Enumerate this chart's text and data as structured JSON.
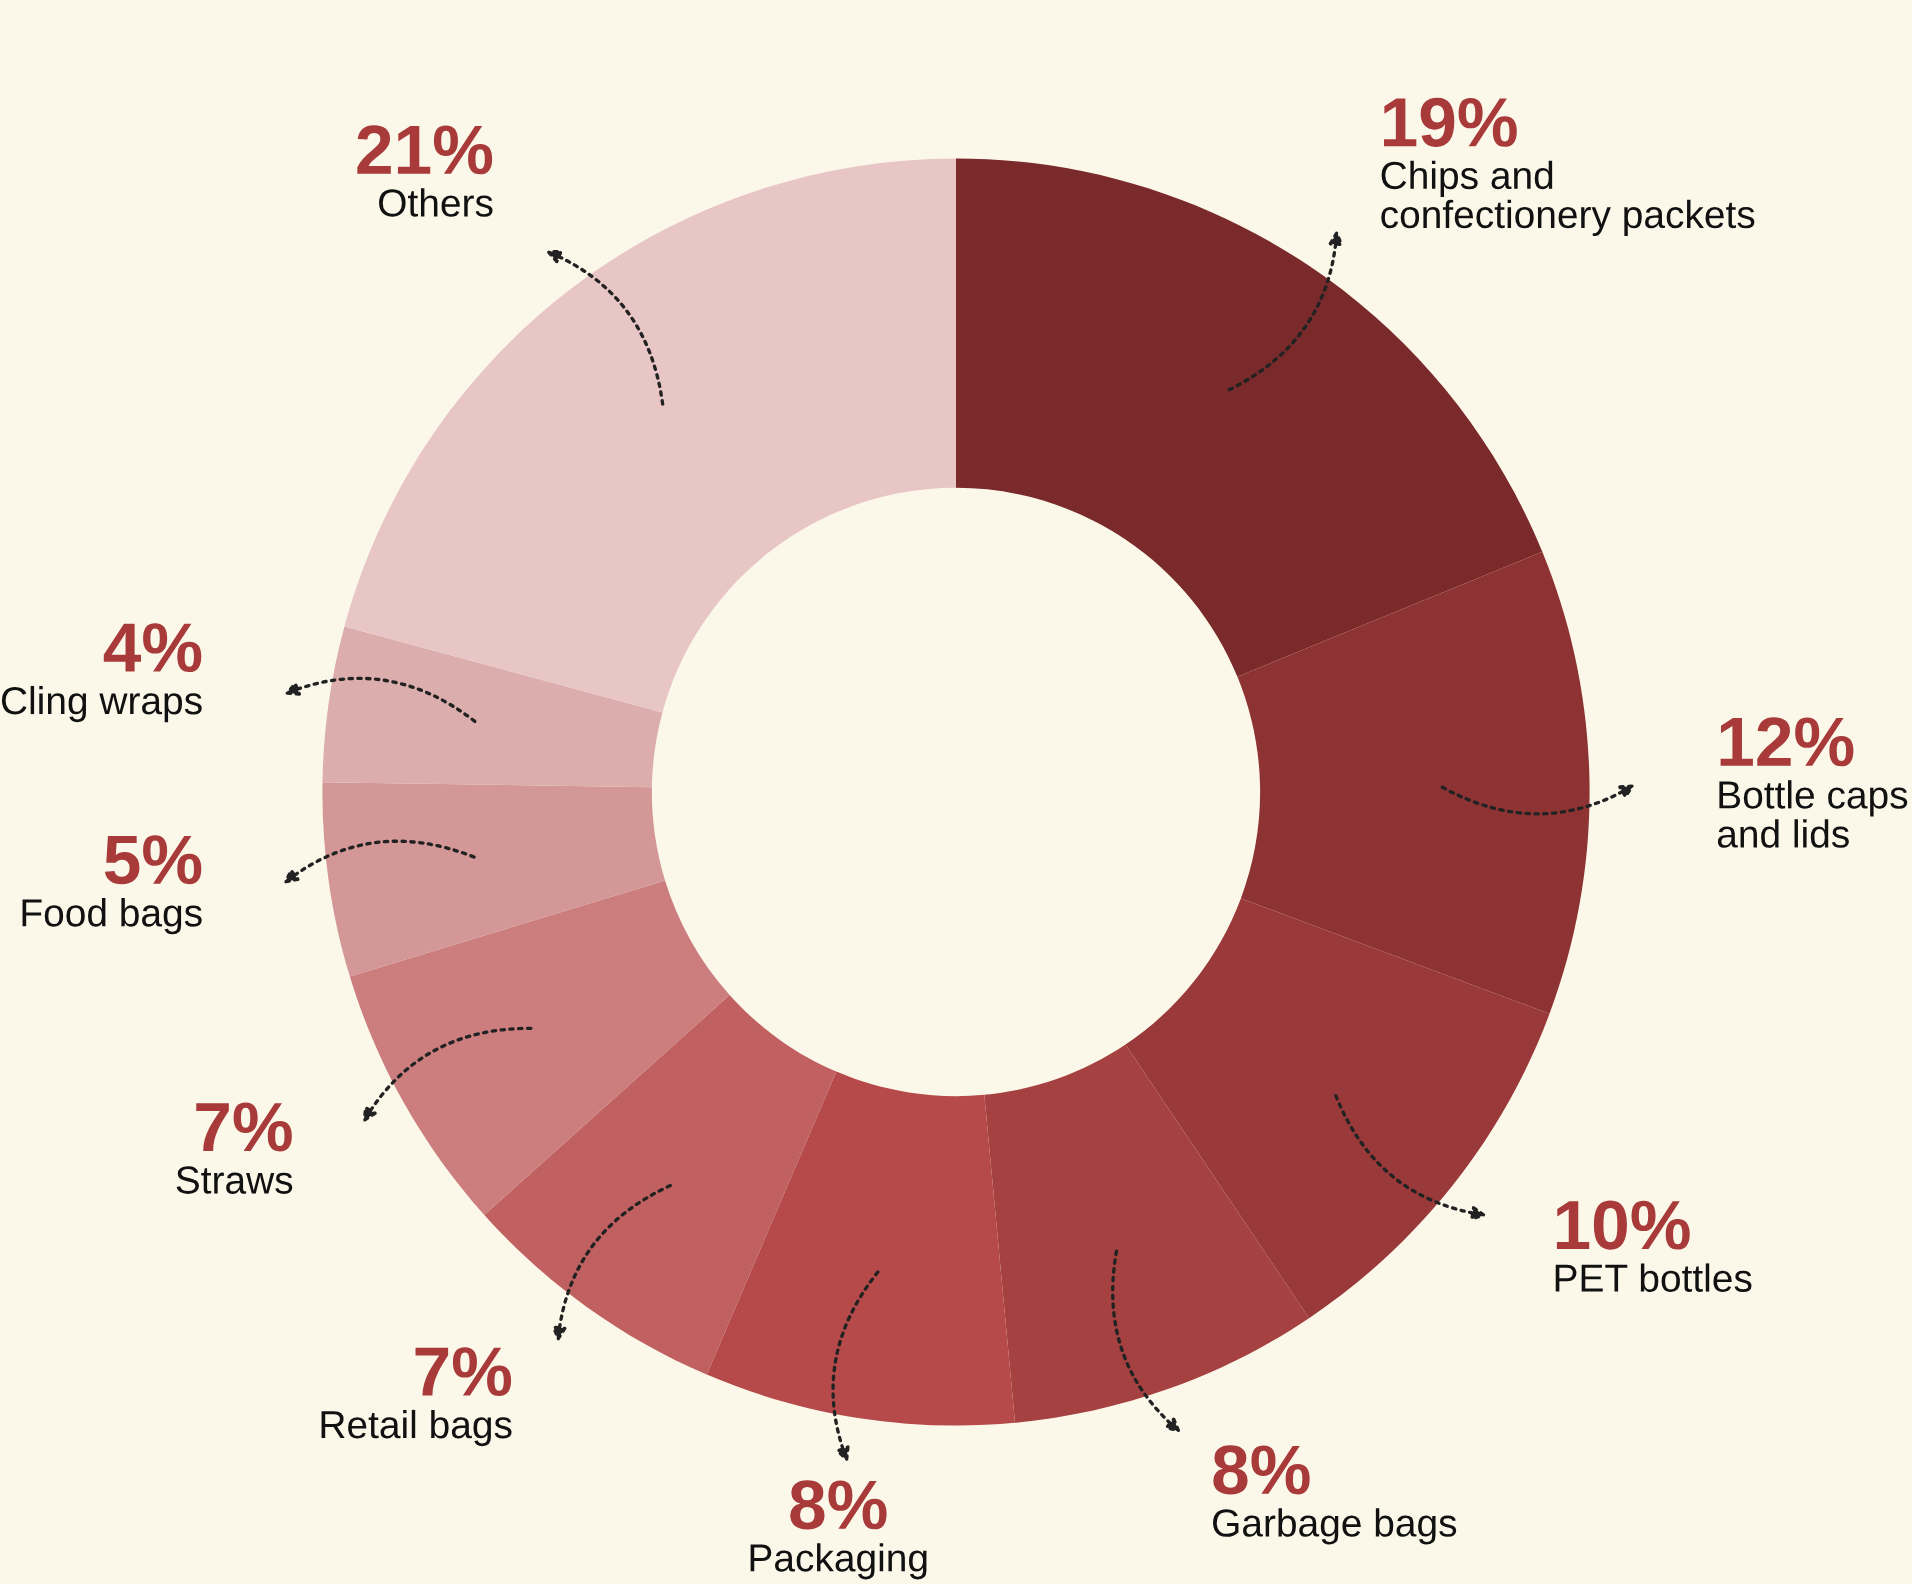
{
  "chart_data": {
    "type": "donut",
    "categories": [
      "Chips and\nconfectionery packets",
      "Bottle caps\nand lids",
      "PET bottles",
      "Garbage bags",
      "Packaging",
      "Retail bags",
      "Straws",
      "Food bags",
      "Cling wraps",
      "Others"
    ],
    "values": [
      19,
      12,
      10,
      8,
      8,
      7,
      7,
      5,
      4,
      21
    ],
    "colors": [
      "#7a2a2a",
      "#8e3333",
      "#993939",
      "#a64141",
      "#b64a4a",
      "#c06060",
      "#cc7e7e",
      "#d49797",
      "#dcadad",
      "#e8c6c6"
    ],
    "value_labels": [
      "19%",
      "12%",
      "10%",
      "8%",
      "8%",
      "7%",
      "7%",
      "5%",
      "4%",
      "21%"
    ],
    "legend": false
  }
}
